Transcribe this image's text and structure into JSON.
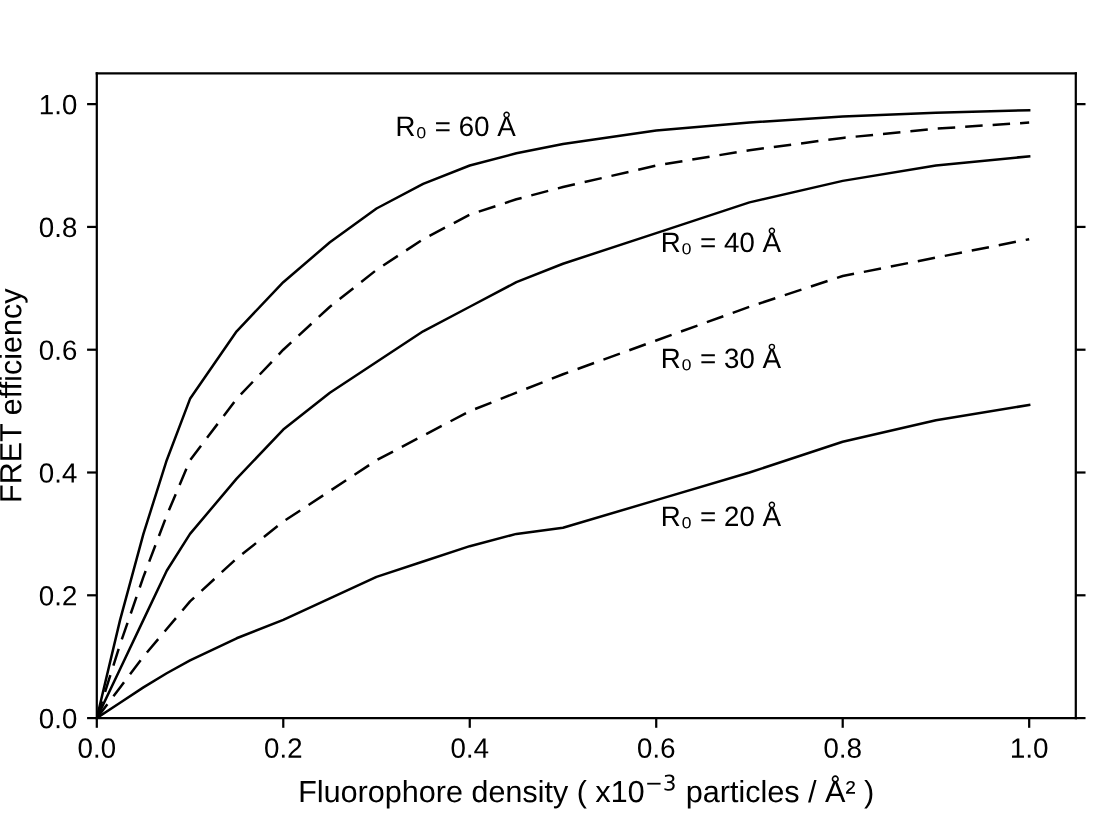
{
  "chart_data": {
    "type": "line",
    "xlabel": "Fluorophore density ( x10$^{−3}$ particles / Å² )",
    "ylabel": "FRET efficiency",
    "x": [
      0,
      0.025,
      0.05,
      0.075,
      0.1,
      0.15,
      0.2,
      0.25,
      0.3,
      0.35,
      0.4,
      0.45,
      0.5,
      0.6,
      0.7,
      0.8,
      0.9,
      1.0
    ],
    "series": [
      {
        "color": "#000000",
        "line_style": "solid",
        "values": [
          0,
          0.16,
          0.3,
          0.42,
          0.52,
          0.63,
          0.71,
          0.775,
          0.83,
          0.87,
          0.9,
          0.92,
          0.935,
          0.957,
          0.97,
          0.98,
          0.986,
          0.99
        ]
      },
      {
        "color": "#000000",
        "line_style": "dashed",
        "values": [
          0,
          0.12,
          0.23,
          0.33,
          0.42,
          0.52,
          0.6,
          0.67,
          0.73,
          0.78,
          0.82,
          0.845,
          0.865,
          0.9,
          0.925,
          0.945,
          0.96,
          0.97
        ]
      },
      {
        "color": "#000000",
        "line_style": "solid",
        "values": [
          0,
          0.08,
          0.16,
          0.24,
          0.3,
          0.39,
          0.47,
          0.53,
          0.58,
          0.63,
          0.67,
          0.71,
          0.74,
          0.79,
          0.84,
          0.875,
          0.9,
          0.915
        ]
      },
      {
        "color": "#000000",
        "line_style": "dashed",
        "values": [
          0,
          0.05,
          0.1,
          0.145,
          0.19,
          0.26,
          0.32,
          0.37,
          0.42,
          0.46,
          0.5,
          0.53,
          0.56,
          0.615,
          0.67,
          0.72,
          0.75,
          0.78
        ]
      },
      {
        "color": "#000000",
        "line_style": "solid",
        "values": [
          0,
          0.025,
          0.05,
          0.073,
          0.094,
          0.13,
          0.16,
          0.195,
          0.23,
          0.255,
          0.28,
          0.3,
          0.31,
          0.355,
          0.4,
          0.45,
          0.485,
          0.51
        ]
      }
    ],
    "annotations": [
      "R₀ = 60 Å",
      "R₀ = 40 Å",
      "R₀ = 30 Å",
      "R₀ = 20 Å"
    ],
    "xlim": [
      0,
      1.05
    ],
    "ylim": [
      0,
      1.05
    ],
    "xticks": [
      {
        "value": 0,
        "label": "0.0"
      },
      0.2,
      0.4,
      0.6,
      0.8,
      {
        "value": 1.0,
        "label": "1.0"
      }
    ],
    "yticks": [
      {
        "value": 0,
        "label": "0.0"
      },
      0.2,
      0.4,
      0.6,
      0.8,
      {
        "value": 1.0,
        "label": "1.0"
      }
    ],
    "grid": false,
    "legend": false
  }
}
